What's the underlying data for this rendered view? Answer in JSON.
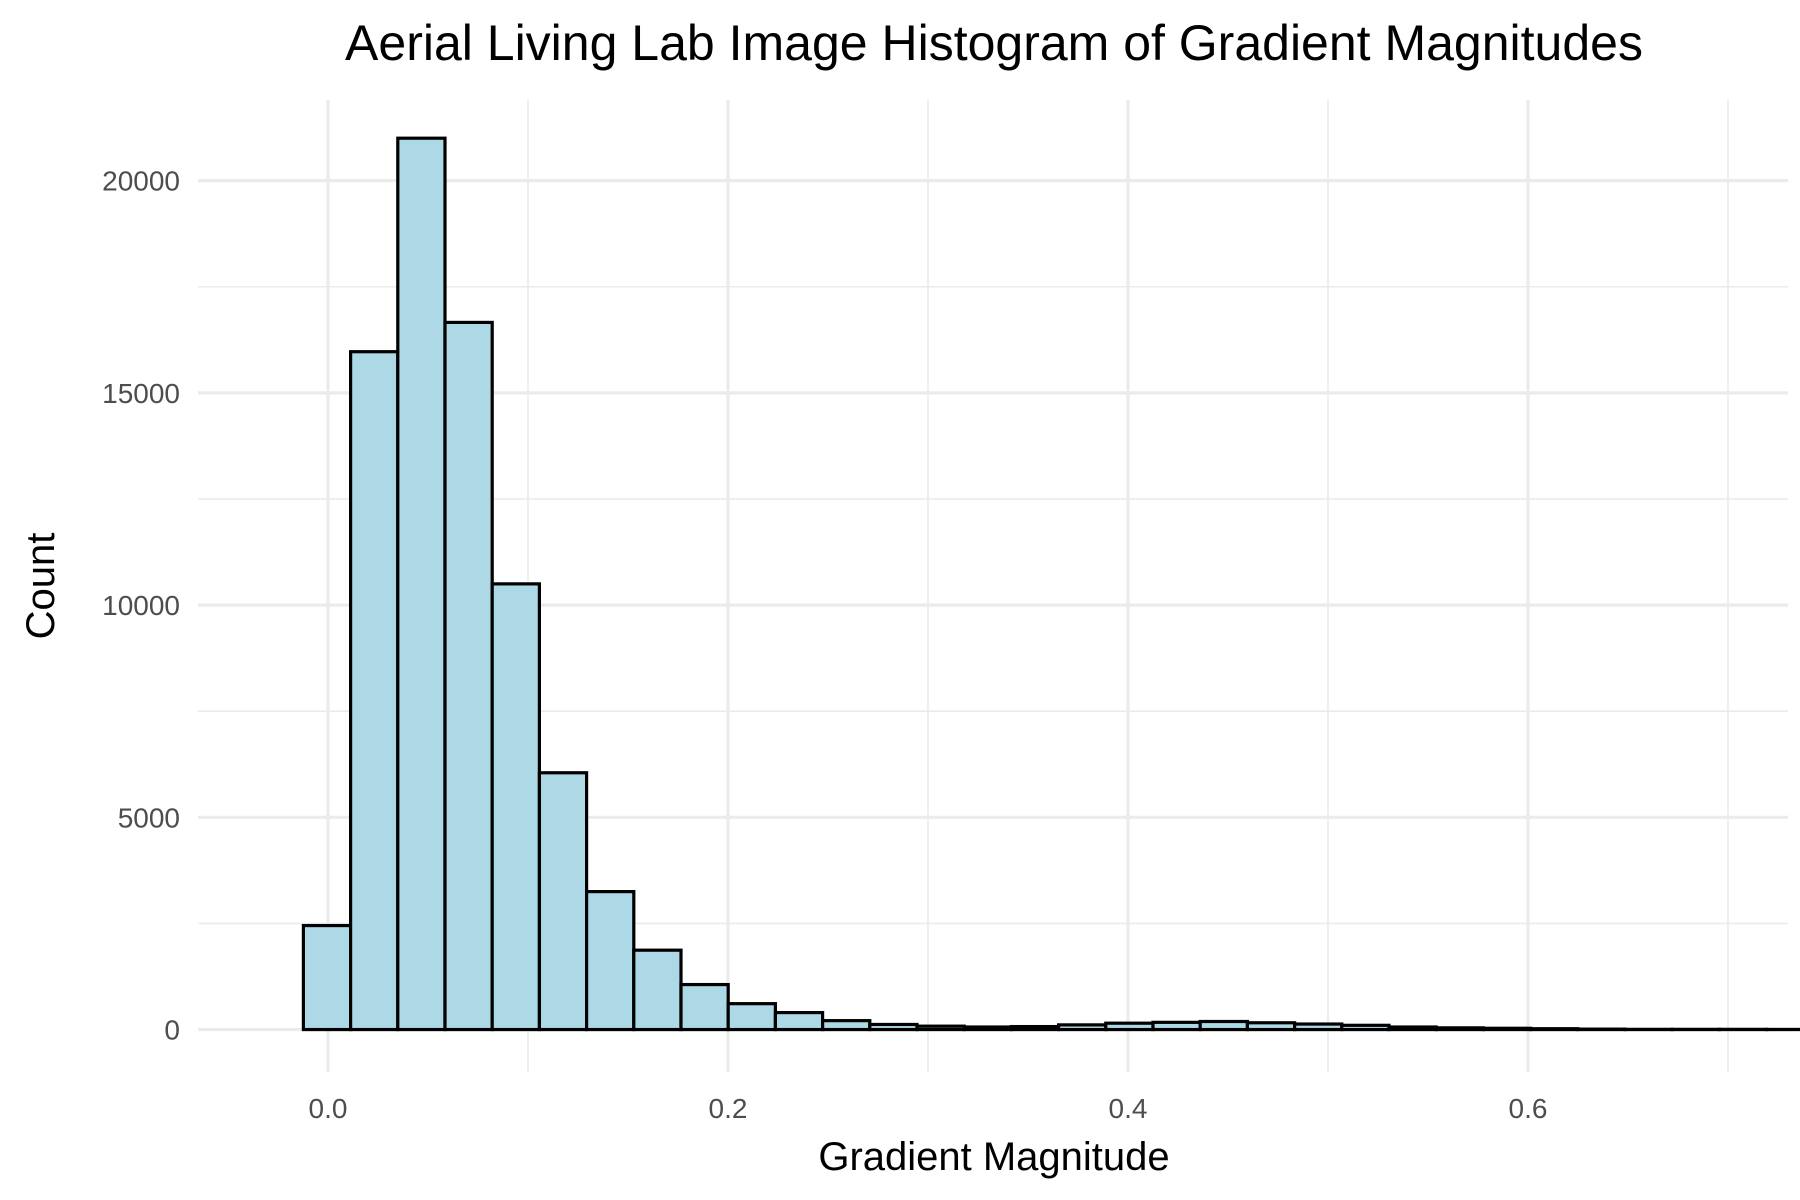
{
  "chart_data": {
    "type": "bar",
    "title": "Aerial Living Lab Image Histogram of Gradient Magnitudes",
    "xlabel": "Gradient Magnitude",
    "ylabel": "Count",
    "xlim": [
      -0.065,
      0.73
    ],
    "ylim": [
      -1000,
      21900
    ],
    "x_ticks": [
      0.0,
      0.2,
      0.4,
      0.6
    ],
    "x_tick_labels": [
      "0.0",
      "0.2",
      "0.4",
      "0.6"
    ],
    "y_ticks": [
      0,
      5000,
      10000,
      15000,
      20000
    ],
    "y_tick_labels": [
      "0",
      "5000",
      "10000",
      "15000",
      "20000"
    ],
    "grid": true,
    "bin_start": -0.0123,
    "bin_width": 0.0236,
    "values": [
      2450,
      15970,
      21000,
      16660,
      10500,
      6050,
      3250,
      1870,
      1060,
      610,
      400,
      210,
      120,
      80,
      60,
      70,
      110,
      150,
      170,
      190,
      160,
      130,
      100,
      60,
      40,
      30,
      20,
      10,
      5,
      5,
      5,
      3
    ],
    "bar_fill": "#add8e6",
    "bar_stroke": "#000000",
    "grid_color": "#ebebeb"
  }
}
